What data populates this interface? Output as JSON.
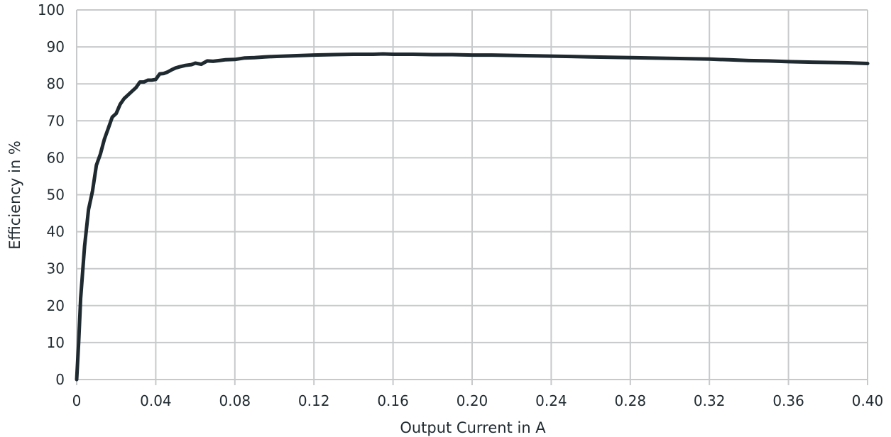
{
  "chart_data": {
    "type": "line",
    "title": "",
    "xlabel": "Output Current in A",
    "ylabel": "Efficiency in %",
    "xlim": [
      0,
      0.4
    ],
    "ylim": [
      0,
      100
    ],
    "x_ticks": [
      "0",
      "0.04",
      "0.08",
      "0.12",
      "0.16",
      "0.20",
      "0.24",
      "0.28",
      "0.32",
      "0.36",
      "0.40"
    ],
    "x_tick_values": [
      0,
      0.04,
      0.08,
      0.12,
      0.16,
      0.2,
      0.24,
      0.28,
      0.32,
      0.36,
      0.4
    ],
    "y_ticks": [
      "0",
      "10",
      "20",
      "30",
      "40",
      "50",
      "60",
      "70",
      "80",
      "90",
      "100"
    ],
    "y_tick_values": [
      0,
      10,
      20,
      30,
      40,
      50,
      60,
      70,
      80,
      90,
      100
    ],
    "grid": true,
    "legend": "none",
    "series": [
      {
        "color": "#1f2a30",
        "x": [
          0.0,
          0.001,
          0.002,
          0.004,
          0.006,
          0.008,
          0.01,
          0.012,
          0.014,
          0.016,
          0.018,
          0.02,
          0.022,
          0.024,
          0.026,
          0.028,
          0.03,
          0.032,
          0.034,
          0.036,
          0.038,
          0.04,
          0.042,
          0.044,
          0.046,
          0.048,
          0.05,
          0.052,
          0.055,
          0.058,
          0.06,
          0.063,
          0.066,
          0.069,
          0.072,
          0.075,
          0.08,
          0.085,
          0.09,
          0.095,
          0.1,
          0.11,
          0.12,
          0.13,
          0.14,
          0.15,
          0.155,
          0.16,
          0.17,
          0.18,
          0.19,
          0.2,
          0.21,
          0.22,
          0.23,
          0.24,
          0.25,
          0.26,
          0.27,
          0.28,
          0.29,
          0.3,
          0.31,
          0.32,
          0.33,
          0.34,
          0.35,
          0.36,
          0.37,
          0.38,
          0.39,
          0.4
        ],
        "y": [
          0,
          10,
          22,
          36,
          46,
          51,
          58,
          61,
          65,
          68,
          71,
          72,
          74.5,
          76,
          77,
          78,
          79,
          80.5,
          80.5,
          81,
          81,
          81.2,
          82.7,
          82.8,
          83.2,
          83.8,
          84.3,
          84.6,
          85,
          85.2,
          85.6,
          85.3,
          86.2,
          86.1,
          86.3,
          86.5,
          86.6,
          87,
          87.1,
          87.3,
          87.4,
          87.6,
          87.8,
          87.9,
          88,
          88,
          88.1,
          88,
          88,
          87.9,
          87.9,
          87.8,
          87.8,
          87.7,
          87.6,
          87.5,
          87.4,
          87.3,
          87.2,
          87.1,
          87,
          86.9,
          86.8,
          86.7,
          86.5,
          86.3,
          86.2,
          86.0,
          85.9,
          85.8,
          85.7,
          85.5
        ]
      }
    ]
  }
}
